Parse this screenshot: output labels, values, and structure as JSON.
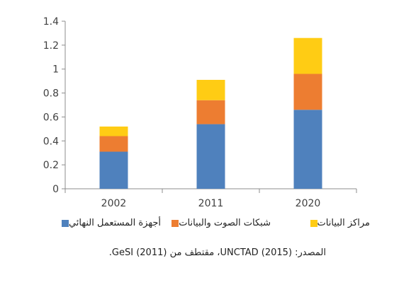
{
  "chart_data": {
    "type": "bar",
    "stacked": true,
    "categories": [
      "2002",
      "2011",
      "2020"
    ],
    "series": [
      {
        "name": "أجهزة المستعمل النهائي",
        "color": "#4F81BD",
        "values": [
          0.31,
          0.54,
          0.66
        ]
      },
      {
        "name": "شبكات الصوت والبيانات",
        "color": "#ED7D31",
        "values": [
          0.13,
          0.2,
          0.3
        ]
      },
      {
        "name": "مراكز البيانات",
        "color": "#FFCC14",
        "values": [
          0.08,
          0.17,
          0.3
        ]
      }
    ],
    "ylim": [
      0,
      1.4
    ],
    "yticks": [
      "0",
      "0.2",
      "0.4",
      "0.6",
      "0.8",
      "1",
      "1.2",
      "1.4"
    ],
    "grid": false,
    "legend_position": "bottom"
  },
  "source_note": "المصدر: UNCTAD (2015)، مقتطف من GeSI (2011)."
}
